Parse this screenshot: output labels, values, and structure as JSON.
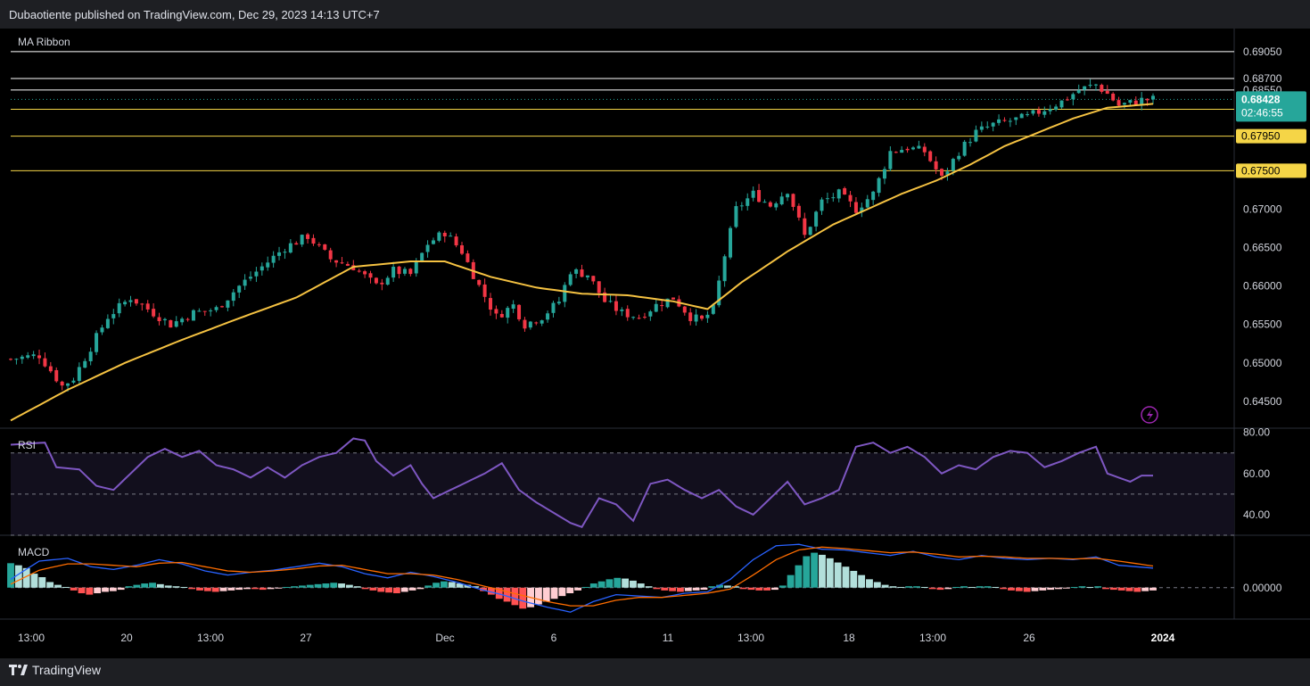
{
  "header": {
    "text": "Dubaotiente published on TradingView.com, Dec 29, 2023 14:13 UTC+7"
  },
  "footer": {
    "brand": "TradingView"
  },
  "colors": {
    "up": "#26a69a",
    "down": "#f23645",
    "ma": "#f5c242",
    "rsi": "#7e57c2",
    "macd": "#2962ff",
    "signal": "#ff6d00",
    "white_level": "#ffffff",
    "yellow_level": "#f5d547"
  },
  "chart_data": [
    {
      "type": "candlestick",
      "indicator": "MA Ribbon",
      "price_axis": {
        "ticks": [
          "0.69050",
          "0.68700",
          "0.68550",
          "0.67000",
          "0.66500",
          "0.66000",
          "0.65500",
          "0.65000",
          "0.64500"
        ],
        "range": [
          0.6415,
          0.6935
        ]
      },
      "current_price": {
        "value": "0.68428",
        "countdown": "02:46:55"
      },
      "levels": [
        {
          "price": 0.6905,
          "label": "0.69050",
          "color": "white"
        },
        {
          "price": 0.687,
          "label": "0.68700",
          "color": "white"
        },
        {
          "price": 0.6855,
          "label": "0.68550",
          "color": "white"
        },
        {
          "price": 0.683,
          "label": "0.68300",
          "color": "yellow"
        },
        {
          "price": 0.6795,
          "label": "0.67950",
          "color": "yellow"
        },
        {
          "price": 0.675,
          "label": "0.67500",
          "color": "yellow"
        }
      ],
      "time_axis": [
        "13:00",
        "20",
        "13:00",
        "27",
        "Dec",
        "6",
        "11",
        "13:00",
        "18",
        "13:00",
        "26",
        "2024"
      ],
      "close_path": [
        [
          0,
          0.6505
        ],
        [
          5,
          0.651
        ],
        [
          9,
          0.647
        ],
        [
          11,
          0.648
        ],
        [
          14,
          0.652
        ],
        [
          17,
          0.656
        ],
        [
          21,
          0.6585
        ],
        [
          24,
          0.657
        ],
        [
          28,
          0.655
        ],
        [
          32,
          0.6565
        ],
        [
          36,
          0.657
        ],
        [
          40,
          0.66
        ],
        [
          44,
          0.6625
        ],
        [
          48,
          0.665
        ],
        [
          52,
          0.6665
        ],
        [
          56,
          0.6635
        ],
        [
          60,
          0.6625
        ],
        [
          64,
          0.66
        ],
        [
          67,
          0.662
        ],
        [
          70,
          0.6615
        ],
        [
          73,
          0.6655
        ],
        [
          76,
          0.667
        ],
        [
          79,
          0.6645
        ],
        [
          82,
          0.66
        ],
        [
          85,
          0.656
        ],
        [
          88,
          0.6575
        ],
        [
          90,
          0.655
        ],
        [
          93,
          0.656
        ],
        [
          96,
          0.658
        ],
        [
          98,
          0.662
        ],
        [
          101,
          0.6615
        ],
        [
          104,
          0.658
        ],
        [
          107,
          0.6565
        ],
        [
          110,
          0.656
        ],
        [
          113,
          0.6575
        ],
        [
          116,
          0.6585
        ],
        [
          119,
          0.656
        ],
        [
          121,
          0.6555
        ],
        [
          123,
          0.657
        ],
        [
          125,
          0.664
        ],
        [
          127,
          0.67
        ],
        [
          130,
          0.672
        ],
        [
          133,
          0.6705
        ],
        [
          136,
          0.6725
        ],
        [
          139,
          0.6665
        ],
        [
          142,
          0.671
        ],
        [
          145,
          0.672
        ],
        [
          148,
          0.67
        ],
        [
          151,
          0.672
        ],
        [
          154,
          0.6775
        ],
        [
          157,
          0.678
        ],
        [
          160,
          0.6775
        ],
        [
          163,
          0.674
        ],
        [
          166,
          0.6775
        ],
        [
          169,
          0.68
        ],
        [
          172,
          0.681
        ],
        [
          175,
          0.6815
        ],
        [
          178,
          0.682
        ],
        [
          181,
          0.683
        ],
        [
          184,
          0.684
        ],
        [
          187,
          0.6855
        ],
        [
          190,
          0.6862
        ],
        [
          192,
          0.685
        ],
        [
          194,
          0.6835
        ],
        [
          196,
          0.6838
        ],
        [
          198,
          0.6842
        ],
        [
          200,
          0.6843
        ]
      ],
      "ma_path": [
        [
          0,
          0.6425
        ],
        [
          10,
          0.6465
        ],
        [
          20,
          0.65
        ],
        [
          30,
          0.653
        ],
        [
          40,
          0.6558
        ],
        [
          50,
          0.6585
        ],
        [
          60,
          0.6625
        ],
        [
          70,
          0.6632
        ],
        [
          76,
          0.6632
        ],
        [
          84,
          0.6612
        ],
        [
          92,
          0.6598
        ],
        [
          100,
          0.659
        ],
        [
          108,
          0.6588
        ],
        [
          116,
          0.658
        ],
        [
          122,
          0.657
        ],
        [
          128,
          0.6605
        ],
        [
          136,
          0.6645
        ],
        [
          144,
          0.668
        ],
        [
          150,
          0.67
        ],
        [
          156,
          0.672
        ],
        [
          162,
          0.6737
        ],
        [
          168,
          0.6758
        ],
        [
          174,
          0.6782
        ],
        [
          180,
          0.68
        ],
        [
          186,
          0.6818
        ],
        [
          192,
          0.6832
        ],
        [
          200,
          0.6837
        ]
      ]
    },
    {
      "type": "line",
      "indicator": "RSI",
      "ticks": [
        "80.00",
        "60.00",
        "40.00"
      ],
      "range": [
        30,
        82
      ],
      "bands": [
        70,
        50,
        30
      ],
      "points": [
        [
          0,
          74
        ],
        [
          6,
          75
        ],
        [
          8,
          63
        ],
        [
          12,
          62
        ],
        [
          15,
          54
        ],
        [
          18,
          52
        ],
        [
          21,
          60
        ],
        [
          24,
          68
        ],
        [
          27,
          72
        ],
        [
          30,
          68
        ],
        [
          33,
          71
        ],
        [
          36,
          64
        ],
        [
          39,
          62
        ],
        [
          42,
          58
        ],
        [
          45,
          63
        ],
        [
          48,
          58
        ],
        [
          51,
          64
        ],
        [
          54,
          68
        ],
        [
          57,
          70
        ],
        [
          60,
          77
        ],
        [
          62,
          76
        ],
        [
          64,
          66
        ],
        [
          67,
          59
        ],
        [
          70,
          64
        ],
        [
          72,
          55
        ],
        [
          74,
          48
        ],
        [
          77,
          52
        ],
        [
          80,
          56
        ],
        [
          83,
          60
        ],
        [
          86,
          65
        ],
        [
          89,
          52
        ],
        [
          92,
          46
        ],
        [
          95,
          41
        ],
        [
          98,
          36
        ],
        [
          100,
          34
        ],
        [
          103,
          48
        ],
        [
          106,
          45
        ],
        [
          109,
          37
        ],
        [
          112,
          55
        ],
        [
          115,
          57
        ],
        [
          118,
          52
        ],
        [
          121,
          48
        ],
        [
          124,
          52
        ],
        [
          127,
          44
        ],
        [
          130,
          40
        ],
        [
          133,
          48
        ],
        [
          136,
          56
        ],
        [
          139,
          45
        ],
        [
          142,
          48
        ],
        [
          145,
          52
        ],
        [
          148,
          73
        ],
        [
          151,
          75
        ],
        [
          154,
          70
        ],
        [
          157,
          73
        ],
        [
          160,
          68
        ],
        [
          163,
          60
        ],
        [
          166,
          64
        ],
        [
          169,
          62
        ],
        [
          172,
          68
        ],
        [
          175,
          71
        ],
        [
          178,
          70
        ],
        [
          181,
          63
        ],
        [
          184,
          66
        ],
        [
          187,
          70
        ],
        [
          190,
          73
        ],
        [
          192,
          60
        ],
        [
          194,
          58
        ],
        [
          196,
          56
        ],
        [
          198,
          59
        ],
        [
          200,
          59
        ]
      ]
    },
    {
      "type": "histogram",
      "indicator": "MACD",
      "ticks": [
        "0.00000"
      ],
      "range": [
        -0.0045,
        0.0075
      ],
      "histogram": [
        0.0035,
        0.0032,
        0.0028,
        0.002,
        0.0015,
        0.0008,
        0.0004,
        0.0001,
        -0.0004,
        -0.0008,
        -0.001,
        -0.0008,
        -0.0006,
        -0.0005,
        -0.0003,
        0.0002,
        0.0004,
        0.0006,
        0.0007,
        0.0005,
        0.0003,
        0.0002,
        0.0001,
        -0.0002,
        -0.0004,
        -0.0005,
        -0.0006,
        -0.0005,
        -0.0004,
        -0.0003,
        -0.0002,
        -0.0002,
        -0.0003,
        -0.0002,
        -0.0001,
        0.0001,
        0.0002,
        0.0003,
        0.0004,
        0.0005,
        0.0006,
        0.0007,
        0.0006,
        0.0004,
        0.0002,
        -0.0002,
        -0.0004,
        -0.0006,
        -0.0007,
        -0.0008,
        -0.0006,
        -0.0004,
        -0.0002,
        0.0003,
        0.0007,
        0.0009,
        0.0008,
        0.0006,
        0.0004,
        0.0002,
        -0.0005,
        -0.001,
        -0.0016,
        -0.002,
        -0.0025,
        -0.003,
        -0.0028,
        -0.0024,
        -0.002,
        -0.0016,
        -0.0012,
        -0.0008,
        -0.0004,
        0.0001,
        0.0006,
        0.0009,
        0.0012,
        0.0014,
        0.0013,
        0.001,
        0.0006,
        0.0002,
        -0.0002,
        -0.0004,
        -0.0005,
        -0.0006,
        -0.0005,
        -0.0004,
        -0.0003,
        0.0002,
        0.0004,
        0.0003,
        0.0002,
        -0.0002,
        -0.0003,
        -0.0004,
        -0.0004,
        -0.0003,
        0.0003,
        0.0018,
        0.0032,
        0.0045,
        0.005,
        0.0047,
        0.0042,
        0.0036,
        0.003,
        0.0024,
        0.0018,
        0.0012,
        0.0008,
        0.0004,
        0.0002,
        0.0001,
        0.0002,
        0.0002,
        0.0001,
        -0.0002,
        -0.0003,
        -0.0002,
        0.0001,
        0.0002,
        0.0001,
        0.0002,
        0.0002,
        0.0001,
        -0.0002,
        -0.0004,
        -0.0005,
        -0.0006,
        -0.0005,
        -0.0004,
        -0.0003,
        -0.0002,
        -0.0001,
        0.0001,
        0.0002,
        0.0001,
        0.0002,
        -0.0002,
        -0.0003,
        -0.0004,
        -0.0005,
        -0.0006,
        -0.0005,
        -0.0004
      ],
      "macd": [
        [
          0,
          0.0012
        ],
        [
          5,
          0.0038
        ],
        [
          10,
          0.0042
        ],
        [
          14,
          0.003
        ],
        [
          18,
          0.0026
        ],
        [
          22,
          0.0032
        ],
        [
          26,
          0.004
        ],
        [
          30,
          0.0034
        ],
        [
          34,
          0.0024
        ],
        [
          38,
          0.0018
        ],
        [
          42,
          0.0022
        ],
        [
          46,
          0.0025
        ],
        [
          50,
          0.003
        ],
        [
          54,
          0.0035
        ],
        [
          58,
          0.003
        ],
        [
          62,
          0.002
        ],
        [
          66,
          0.0014
        ],
        [
          70,
          0.0022
        ],
        [
          74,
          0.0016
        ],
        [
          78,
          0.0008
        ],
        [
          82,
          -0.0002
        ],
        [
          86,
          -0.001
        ],
        [
          90,
          -0.002
        ],
        [
          94,
          -0.0028
        ],
        [
          98,
          -0.0035
        ],
        [
          102,
          -0.002
        ],
        [
          106,
          -0.001
        ],
        [
          110,
          -0.0012
        ],
        [
          114,
          -0.0014
        ],
        [
          118,
          -0.0008
        ],
        [
          122,
          -0.0006
        ],
        [
          126,
          0.0012
        ],
        [
          130,
          0.004
        ],
        [
          134,
          0.006
        ],
        [
          138,
          0.0062
        ],
        [
          142,
          0.0055
        ],
        [
          146,
          0.0054
        ],
        [
          150,
          0.005
        ],
        [
          154,
          0.0046
        ],
        [
          158,
          0.0052
        ],
        [
          162,
          0.0044
        ],
        [
          166,
          0.004
        ],
        [
          170,
          0.0046
        ],
        [
          174,
          0.0042
        ],
        [
          178,
          0.004
        ],
        [
          182,
          0.0042
        ],
        [
          186,
          0.004
        ],
        [
          190,
          0.0044
        ],
        [
          194,
          0.0032
        ],
        [
          200,
          0.0028
        ]
      ],
      "signal": [
        [
          0,
          0.0005
        ],
        [
          5,
          0.0025
        ],
        [
          10,
          0.0034
        ],
        [
          14,
          0.0034
        ],
        [
          18,
          0.0032
        ],
        [
          22,
          0.003
        ],
        [
          26,
          0.0035
        ],
        [
          30,
          0.0036
        ],
        [
          34,
          0.003
        ],
        [
          38,
          0.0024
        ],
        [
          42,
          0.0022
        ],
        [
          46,
          0.0024
        ],
        [
          50,
          0.0027
        ],
        [
          54,
          0.0031
        ],
        [
          58,
          0.0032
        ],
        [
          62,
          0.0026
        ],
        [
          66,
          0.002
        ],
        [
          70,
          0.002
        ],
        [
          74,
          0.0018
        ],
        [
          78,
          0.0012
        ],
        [
          82,
          0.0004
        ],
        [
          86,
          -0.0004
        ],
        [
          90,
          -0.0012
        ],
        [
          94,
          -0.002
        ],
        [
          98,
          -0.0026
        ],
        [
          102,
          -0.0026
        ],
        [
          106,
          -0.0018
        ],
        [
          110,
          -0.0014
        ],
        [
          114,
          -0.0014
        ],
        [
          118,
          -0.0011
        ],
        [
          122,
          -0.0008
        ],
        [
          126,
          -0.0002
        ],
        [
          130,
          0.0018
        ],
        [
          134,
          0.004
        ],
        [
          138,
          0.0054
        ],
        [
          142,
          0.0058
        ],
        [
          146,
          0.0056
        ],
        [
          150,
          0.0053
        ],
        [
          154,
          0.005
        ],
        [
          158,
          0.0051
        ],
        [
          162,
          0.0048
        ],
        [
          166,
          0.0044
        ],
        [
          170,
          0.0045
        ],
        [
          174,
          0.0044
        ],
        [
          178,
          0.0042
        ],
        [
          182,
          0.0042
        ],
        [
          186,
          0.0041
        ],
        [
          190,
          0.0042
        ],
        [
          194,
          0.0038
        ],
        [
          200,
          0.0031
        ]
      ]
    }
  ]
}
